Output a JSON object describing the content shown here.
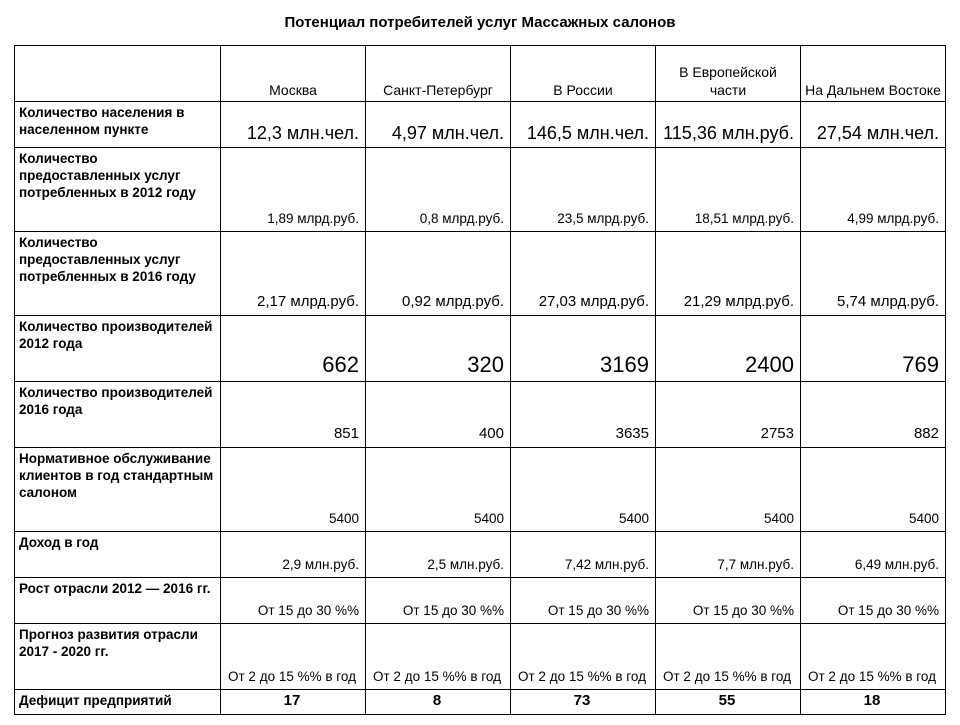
{
  "title": "Потенциал потребителей услуг Массажных салонов",
  "columns": [
    "Москва",
    "Санкт-Петербург",
    "В России",
    "В Европейской части",
    "На Дальнем Востоке"
  ],
  "rows": [
    {
      "label": "Количество населения в населенном пункте",
      "cells": [
        "12,3 млн.чел.",
        "4,97 млн.чел.",
        "146,5 млн.чел.",
        "115,36 млн.руб.",
        "27,54 млн.чел."
      ],
      "size": "big",
      "height": "h2"
    },
    {
      "label": "Количество предоставленных услуг потребленных в 2012 году",
      "cells": [
        "1,89 млрд.руб.",
        "0,8 млрд.руб.",
        "23,5 млрд.руб.",
        "18,51 млрд.руб.",
        "4,99 млрд.руб."
      ],
      "size": "normal",
      "height": "h4"
    },
    {
      "label": "Количество предоставленных услуг потребленных в 2016 году",
      "cells": [
        "2,17 млрд.руб.",
        "0,92 млрд.руб.",
        "27,03 млрд.руб.",
        "21,29 млрд.руб.",
        "5,74 млрд.руб."
      ],
      "size": "medium",
      "height": "h4"
    },
    {
      "label": "Количество производителей 2012 года",
      "cells": [
        "662",
        "320",
        "3169",
        "2400",
        "769"
      ],
      "size": "bigger",
      "height": "h3"
    },
    {
      "label": "Количество производителей 2016 года",
      "cells": [
        "851",
        "400",
        "3635",
        "2753",
        "882"
      ],
      "size": "medium",
      "height": "h3"
    },
    {
      "label": "Нормативное обслуживание клиентов в год стандартным салоном",
      "cells": [
        "5400",
        "5400",
        "5400",
        "5400",
        "5400"
      ],
      "size": "normal",
      "height": "h4"
    },
    {
      "label": "Доход в год",
      "cells": [
        "2,9 млн.руб.",
        "2,5 млн.руб.",
        "7,42 млн.руб.",
        "7,7 млн.руб.",
        "6,49 млн.руб."
      ],
      "size": "normal",
      "height": "h2"
    },
    {
      "label": "Рост отрасли 2012 — 2016 гг.",
      "cells": [
        "От 15 до 30 %%",
        "От 15 до 30 %%",
        "От 15 до 30 %%",
        "От 15 до 30 %%",
        "От 15 до 30 %%"
      ],
      "size": "normal",
      "height": "h2"
    },
    {
      "label": "Прогноз развития отрасли 2017 - 2020 гг.",
      "cells": [
        "От 2 до 15 %% в год",
        "От 2 до 15 %% в год",
        "От 2 до 15 %% в год",
        "От 2 до 15 %% в год",
        "От 2 до 15 %% в год"
      ],
      "size": "normal",
      "height": "h3",
      "center": true
    },
    {
      "label": "Дефицит предприятий",
      "cells": [
        "17",
        "8",
        "73",
        "55",
        "18"
      ],
      "size": "deficit",
      "height": "h1"
    }
  ]
}
